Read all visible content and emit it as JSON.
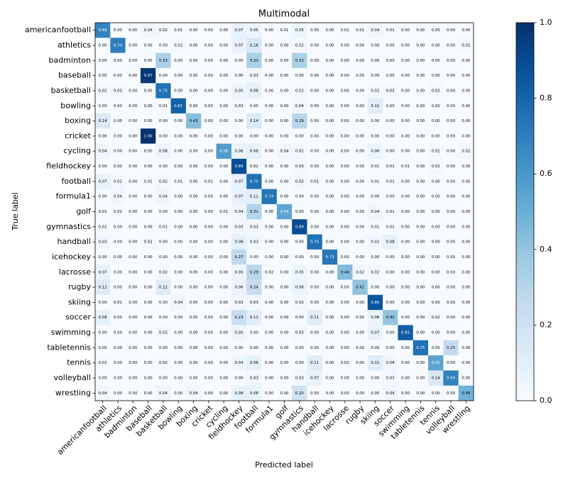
{
  "chart_data": {
    "type": "heatmap",
    "title": "Multimodal",
    "xlabel": "Predicted label",
    "ylabel": "True label",
    "cmap": "Blues",
    "categories": [
      "americanfootball",
      "athletics",
      "badminton",
      "baseball",
      "basketball",
      "bowling",
      "boxing",
      "cricket",
      "cycling",
      "fieldhockey",
      "football",
      "formula1",
      "golf",
      "gymnastics",
      "handball",
      "icehockey",
      "lacrosse",
      "rugby",
      "skiing",
      "soccer",
      "swimming",
      "tabletennis",
      "tennis",
      "volleyball",
      "wrestling"
    ],
    "values": [
      [
        0.68,
        0,
        0,
        0.04,
        0.02,
        0.01,
        0,
        0,
        0,
        0.07,
        0.05,
        0,
        0.01,
        0.05,
        0,
        0,
        0.01,
        0.01,
        0.04,
        0.01,
        0,
        0,
        0,
        0,
        0
      ],
      [
        0,
        0.7,
        0,
        0,
        0,
        0.02,
        0,
        0,
        0,
        0.07,
        0.16,
        0,
        0,
        0.02,
        0,
        0,
        0,
        0,
        0,
        0,
        0,
        0,
        0,
        0,
        0.02
      ],
      [
        0,
        0,
        0,
        0,
        0.33,
        0,
        0,
        0,
        0,
        0,
        0.33,
        0,
        0,
        0.33,
        0,
        0,
        0,
        0,
        0,
        0,
        0,
        0,
        0,
        0,
        0
      ],
      [
        0,
        0,
        0,
        0.97,
        0,
        0,
        0,
        0,
        0,
        0,
        0.03,
        0,
        0,
        0,
        0,
        0,
        0,
        0,
        0,
        0,
        0,
        0,
        0,
        0,
        0
      ],
      [
        0.02,
        0.03,
        0,
        0,
        0.75,
        0,
        0,
        0,
        0,
        0.05,
        0.08,
        0,
        0,
        0.02,
        0,
        0,
        0,
        0,
        0.02,
        0.03,
        0,
        0,
        0.02,
        0,
        0
      ],
      [
        0,
        0,
        0,
        0,
        0.01,
        0.81,
        0,
        0,
        0,
        0.03,
        0,
        0,
        0,
        0.04,
        0,
        0,
        0,
        0,
        0.11,
        0,
        0,
        0,
        0,
        0,
        0
      ],
      [
        0.14,
        0,
        0,
        0,
        0,
        0,
        0.43,
        0,
        0,
        0,
        0.14,
        0,
        0,
        0.29,
        0,
        0,
        0,
        0,
        0,
        0,
        0,
        0,
        0,
        0,
        0
      ],
      [
        0,
        0,
        0,
        1,
        0,
        0,
        0,
        0,
        0,
        0,
        0,
        0,
        0,
        0,
        0,
        0,
        0,
        0,
        0,
        0,
        0,
        0,
        0,
        0,
        0
      ],
      [
        0.04,
        0,
        0,
        0,
        0.06,
        0,
        0,
        0,
        0.58,
        0.06,
        0.08,
        0,
        0.04,
        0.02,
        0,
        0,
        0,
        0,
        0.06,
        0,
        0,
        0,
        0.02,
        0,
        0.02
      ],
      [
        0,
        0,
        0,
        0,
        0,
        0,
        0,
        0,
        0,
        0.89,
        0.02,
        0,
        0,
        0.03,
        0,
        0,
        0,
        0,
        0.01,
        0.01,
        0.01,
        0,
        0.02,
        0,
        0
      ],
      [
        0.07,
        0.02,
        0,
        0.01,
        0.02,
        0.01,
        0,
        0.01,
        0,
        0.07,
        0.75,
        0,
        0,
        0.03,
        0.01,
        0,
        0,
        0,
        0.01,
        0.01,
        0,
        0,
        0,
        0,
        0
      ],
      [
        0,
        0.04,
        0,
        0,
        0.04,
        0,
        0,
        0,
        0,
        0.07,
        0.11,
        0.74,
        0,
        0,
        0,
        0,
        0,
        0,
        0,
        0,
        0,
        0,
        0,
        0,
        0
      ],
      [
        0.01,
        0.01,
        0,
        0,
        0,
        0,
        0,
        0,
        0.01,
        0.04,
        0.31,
        0,
        0.54,
        0,
        0,
        0,
        0,
        0,
        0.04,
        0.01,
        0,
        0,
        0,
        0,
        0
      ],
      [
        0.02,
        0,
        0,
        0,
        0.01,
        0,
        0,
        0,
        0,
        0.03,
        0.03,
        0,
        0,
        0.89,
        0,
        0,
        0,
        0,
        0.01,
        0.01,
        0,
        0,
        0,
        0,
        0
      ],
      [
        0.03,
        0,
        0,
        0.02,
        0,
        0,
        0,
        0,
        0,
        0.08,
        0.03,
        0,
        0,
        0,
        0.75,
        0,
        0,
        0,
        0.02,
        0.08,
        0,
        0,
        0,
        0,
        0
      ],
      [
        0,
        0,
        0,
        0,
        0,
        0,
        0,
        0,
        0,
        0.27,
        0,
        0,
        0,
        0,
        0,
        0.73,
        0,
        0,
        0,
        0,
        0,
        0,
        0,
        0,
        0
      ],
      [
        0.07,
        0,
        0,
        0,
        0.02,
        0,
        0,
        0,
        0,
        0.05,
        0.29,
        0.02,
        0,
        0.05,
        0,
        0,
        0.44,
        0.02,
        0.02,
        0,
        0,
        0,
        0,
        0,
        0
      ],
      [
        0.12,
        0,
        0,
        0,
        0.12,
        0,
        0,
        0,
        0,
        0.06,
        0.24,
        0,
        0,
        0.06,
        0,
        0,
        0,
        0.41,
        0,
        0,
        0,
        0,
        0,
        0,
        0
      ],
      [
        0,
        0.01,
        0,
        0,
        0,
        0.04,
        0,
        0,
        0,
        0.03,
        0.03,
        0,
        0,
        0.02,
        0,
        0,
        0,
        0,
        0.86,
        0,
        0,
        0,
        0,
        0,
        0
      ],
      [
        0.08,
        0,
        0,
        0,
        0,
        0,
        0,
        0,
        0,
        0.23,
        0.11,
        0,
        0,
        0,
        0.11,
        0,
        0,
        0,
        0.06,
        0.4,
        0,
        0,
        0.02,
        0,
        0
      ],
      [
        0,
        0,
        0,
        0,
        0.02,
        0,
        0,
        0,
        0,
        0.05,
        0,
        0,
        0,
        0.03,
        0,
        0,
        0,
        0,
        0.07,
        0,
        0.83,
        0,
        0,
        0,
        0
      ],
      [
        0,
        0,
        0,
        0,
        0,
        0,
        0,
        0,
        0,
        0,
        0,
        0,
        0,
        0,
        0,
        0,
        0,
        0,
        0,
        0,
        0,
        0.75,
        0,
        0.25,
        0
      ],
      [
        0.02,
        0,
        0,
        0,
        0.02,
        0,
        0,
        0,
        0,
        0.04,
        0.08,
        0,
        0,
        0,
        0.11,
        0,
        0.02,
        0,
        0.11,
        0.04,
        0,
        0,
        0.55,
        0,
        0
      ],
      [
        0,
        0,
        0,
        0,
        0,
        0,
        0,
        0,
        0,
        0,
        0.03,
        0,
        0,
        0.03,
        0.07,
        0,
        0,
        0,
        0,
        0.03,
        0,
        0,
        0.14,
        0.69,
        0
      ],
      [
        0.04,
        0,
        0,
        0,
        0.04,
        0,
        0.04,
        0,
        0,
        0.08,
        0.08,
        0,
        0,
        0.2,
        0,
        0,
        0,
        0,
        0,
        0.04,
        0,
        0,
        0,
        0,
        0.48
      ]
    ],
    "value_labels": [
      [
        "0.68",
        "0.00",
        "0.00",
        "0.04",
        "0.02",
        "0.01",
        "0.00",
        "0.00",
        "0.00",
        "0.07",
        "0.05",
        "0.00",
        "0.01",
        "0.05",
        "0.00",
        "0.00",
        "0.01",
        "0.01",
        "0.04",
        "0.01",
        "0.00",
        "0.00",
        "0.00",
        "0.00",
        "0.00"
      ],
      [
        "0.00",
        "0.70",
        "0.00",
        "0.00",
        "0.00",
        "0.02",
        "0.00",
        "0.00",
        "0.00",
        "0.07",
        "0.16",
        "0.00",
        "0.00",
        "0.02",
        "0.00",
        "0.00",
        "0.00",
        "0.00",
        "0.00",
        "0.00",
        "0.00",
        "0.00",
        "0.00",
        "0.00",
        "0.02"
      ],
      [
        "0.00",
        "0.00",
        "0.00",
        "0.00",
        "0.33",
        "0.00",
        "0.00",
        "0.00",
        "0.00",
        "0.00",
        "0.33",
        "0.00",
        "0.00",
        "0.33",
        "0.00",
        "0.00",
        "0.00",
        "0.00",
        "0.00",
        "0.00",
        "0.00",
        "0.00",
        "0.00",
        "0.00",
        "0.00"
      ],
      [
        "0.00",
        "0.00",
        "0.00",
        "0.97",
        "0.00",
        "0.00",
        "0.00",
        "0.00",
        "0.00",
        "0.00",
        "0.03",
        "0.00",
        "0.00",
        "0.00",
        "0.00",
        "0.00",
        "0.00",
        "0.00",
        "0.00",
        "0.00",
        "0.00",
        "0.00",
        "0.00",
        "0.00",
        "0.00"
      ],
      [
        "0.02",
        "0.03",
        "0.00",
        "0.00",
        "0.75",
        "0.00",
        "0.00",
        "0.00",
        "0.00",
        "0.05",
        "0.08",
        "0.00",
        "0.00",
        "0.02",
        "0.00",
        "0.00",
        "0.00",
        "0.00",
        "0.02",
        "0.03",
        "0.00",
        "0.00",
        "0.02",
        "0.00",
        "0.00"
      ],
      [
        "0.00",
        "0.00",
        "0.00",
        "0.00",
        "0.01",
        "0.81",
        "0.00",
        "0.00",
        "0.00",
        "0.03",
        "0.00",
        "0.00",
        "0.00",
        "0.04",
        "0.00",
        "0.00",
        "0.00",
        "0.00",
        "0.11",
        "0.00",
        "0.00",
        "0.00",
        "0.00",
        "0.00",
        "0.00"
      ],
      [
        "0.14",
        "0.00",
        "0.00",
        "0.00",
        "0.00",
        "0.00",
        "0.43",
        "0.00",
        "0.00",
        "0.00",
        "0.14",
        "0.00",
        "0.00",
        "0.29",
        "0.00",
        "0.00",
        "0.00",
        "0.00",
        "0.00",
        "0.00",
        "0.00",
        "0.00",
        "0.00",
        "0.00",
        "0.00"
      ],
      [
        "0.00",
        "0.00",
        "0.00",
        "1.00",
        "0.00",
        "0.00",
        "0.00",
        "0.00",
        "0.00",
        "0.00",
        "0.00",
        "0.00",
        "0.00",
        "0.00",
        "0.00",
        "0.00",
        "0.00",
        "0.00",
        "0.00",
        "0.00",
        "0.00",
        "0.00",
        "0.00",
        "0.00",
        "0.00"
      ],
      [
        "0.04",
        "0.00",
        "0.00",
        "0.00",
        "0.06",
        "0.00",
        "0.00",
        "0.00",
        "0.58",
        "0.06",
        "0.08",
        "0.00",
        "0.04",
        "0.02",
        "0.00",
        "0.00",
        "0.00",
        "0.00",
        "0.06",
        "0.00",
        "0.00",
        "0.00",
        "0.02",
        "0.00",
        "0.02"
      ],
      [
        "0.00",
        "0.00",
        "0.00",
        "0.00",
        "0.00",
        "0.00",
        "0.00",
        "0.00",
        "0.00",
        "0.89",
        "0.02",
        "0.00",
        "0.00",
        "0.03",
        "0.00",
        "0.00",
        "0.00",
        "0.00",
        "0.01",
        "0.01",
        "0.01",
        "0.00",
        "0.02",
        "0.00",
        "0.00"
      ],
      [
        "0.07",
        "0.02",
        "0.00",
        "0.01",
        "0.02",
        "0.01",
        "0.00",
        "0.01",
        "0.00",
        "0.07",
        "0.75",
        "0.00",
        "0.00",
        "0.03",
        "0.01",
        "0.00",
        "0.00",
        "0.00",
        "0.01",
        "0.01",
        "0.00",
        "0.00",
        "0.00",
        "0.00",
        "0.00"
      ],
      [
        "0.00",
        "0.04",
        "0.00",
        "0.00",
        "0.04",
        "0.00",
        "0.00",
        "0.00",
        "0.00",
        "0.07",
        "0.11",
        "0.74",
        "0.00",
        "0.00",
        "0.00",
        "0.00",
        "0.00",
        "0.00",
        "0.00",
        "0.00",
        "0.00",
        "0.00",
        "0.00",
        "0.00",
        "0.00"
      ],
      [
        "0.01",
        "0.01",
        "0.00",
        "0.00",
        "0.00",
        "0.00",
        "0.00",
        "0.00",
        "0.01",
        "0.04",
        "0.31",
        "0.00",
        "0.54",
        "0.00",
        "0.00",
        "0.00",
        "0.00",
        "0.00",
        "0.04",
        "0.01",
        "0.00",
        "0.00",
        "0.00",
        "0.00",
        "0.00"
      ],
      [
        "0.02",
        "0.00",
        "0.00",
        "0.00",
        "0.01",
        "0.00",
        "0.00",
        "0.00",
        "0.00",
        "0.03",
        "0.03",
        "0.00",
        "0.00",
        "0.89",
        "0.00",
        "0.00",
        "0.00",
        "0.00",
        "0.01",
        "0.01",
        "0.00",
        "0.00",
        "0.00",
        "0.00",
        "0.00"
      ],
      [
        "0.03",
        "0.00",
        "0.00",
        "0.02",
        "0.00",
        "0.00",
        "0.00",
        "0.00",
        "0.00",
        "0.08",
        "0.03",
        "0.00",
        "0.00",
        "0.00",
        "0.75",
        "0.00",
        "0.00",
        "0.00",
        "0.02",
        "0.08",
        "0.00",
        "0.00",
        "0.00",
        "0.00",
        "0.00"
      ],
      [
        "0.00",
        "0.00",
        "0.00",
        "0.00",
        "0.00",
        "0.00",
        "0.00",
        "0.00",
        "0.00",
        "0.27",
        "0.00",
        "0.00",
        "0.00",
        "0.00",
        "0.00",
        "0.73",
        "0.00",
        "0.00",
        "0.00",
        "0.00",
        "0.00",
        "0.00",
        "0.00",
        "0.00",
        "0.00"
      ],
      [
        "0.07",
        "0.00",
        "0.00",
        "0.00",
        "0.02",
        "0.00",
        "0.00",
        "0.00",
        "0.00",
        "0.05",
        "0.29",
        "0.02",
        "0.00",
        "0.05",
        "0.00",
        "0.00",
        "0.44",
        "0.02",
        "0.02",
        "0.00",
        "0.00",
        "0.00",
        "0.00",
        "0.00",
        "0.00"
      ],
      [
        "0.12",
        "0.00",
        "0.00",
        "0.00",
        "0.12",
        "0.00",
        "0.00",
        "0.00",
        "0.00",
        "0.06",
        "0.24",
        "0.00",
        "0.00",
        "0.06",
        "0.00",
        "0.00",
        "0.00",
        "0.41",
        "0.00",
        "0.00",
        "0.00",
        "0.00",
        "0.00",
        "0.00",
        "0.00"
      ],
      [
        "0.00",
        "0.01",
        "0.00",
        "0.00",
        "0.00",
        "0.04",
        "0.00",
        "0.00",
        "0.00",
        "0.03",
        "0.03",
        "0.00",
        "0.00",
        "0.02",
        "0.00",
        "0.00",
        "0.00",
        "0.00",
        "0.86",
        "0.00",
        "0.00",
        "0.00",
        "0.00",
        "0.00",
        "0.00"
      ],
      [
        "0.08",
        "0.00",
        "0.00",
        "0.00",
        "0.00",
        "0.00",
        "0.00",
        "0.00",
        "0.00",
        "0.23",
        "0.11",
        "0.00",
        "0.00",
        "0.00",
        "0.11",
        "0.00",
        "0.00",
        "0.00",
        "0.06",
        "0.40",
        "0.00",
        "0.00",
        "0.02",
        "0.00",
        "0.00"
      ],
      [
        "0.00",
        "0.00",
        "0.00",
        "0.00",
        "0.02",
        "0.00",
        "0.00",
        "0.00",
        "0.00",
        "0.05",
        "0.00",
        "0.00",
        "0.00",
        "0.03",
        "0.00",
        "0.00",
        "0.00",
        "0.00",
        "0.07",
        "0.00",
        "0.83",
        "0.00",
        "0.00",
        "0.00",
        "0.00"
      ],
      [
        "0.00",
        "0.00",
        "0.00",
        "0.00",
        "0.00",
        "0.00",
        "0.00",
        "0.00",
        "0.00",
        "0.00",
        "0.00",
        "0.00",
        "0.00",
        "0.00",
        "0.00",
        "0.00",
        "0.00",
        "0.00",
        "0.00",
        "0.00",
        "0.00",
        "0.75",
        "0.00",
        "0.25",
        "0.00"
      ],
      [
        "0.02",
        "0.00",
        "0.00",
        "0.00",
        "0.02",
        "0.00",
        "0.00",
        "0.00",
        "0.00",
        "0.04",
        "0.08",
        "0.00",
        "0.00",
        "0.00",
        "0.11",
        "0.00",
        "0.02",
        "0.00",
        "0.11",
        "0.04",
        "0.00",
        "0.00",
        "0.55",
        "0.00",
        "0.00"
      ],
      [
        "0.00",
        "0.00",
        "0.00",
        "0.00",
        "0.00",
        "0.00",
        "0.00",
        "0.00",
        "0.00",
        "0.00",
        "0.03",
        "0.00",
        "0.00",
        "0.03",
        "0.07",
        "0.00",
        "0.00",
        "0.00",
        "0.00",
        "0.03",
        "0.00",
        "0.00",
        "0.14",
        "0.69",
        "0.00"
      ],
      [
        "0.04",
        "0.00",
        "0.00",
        "0.00",
        "0.04",
        "0.00",
        "0.04",
        "0.00",
        "0.00",
        "0.08",
        "0.08",
        "0.00",
        "0.00",
        "0.20",
        "0.00",
        "0.00",
        "0.00",
        "0.00",
        "0.00",
        "0.04",
        "0.00",
        "0.00",
        "0.00",
        "0.00",
        "0.48"
      ]
    ],
    "clim": [
      0,
      1
    ],
    "colorbar_ticks": [
      {
        "value": 0,
        "label": "0.0"
      },
      {
        "value": 0.2,
        "label": "0.2"
      },
      {
        "value": 0.4,
        "label": "0.4"
      },
      {
        "value": 0.6,
        "label": "0.6"
      },
      {
        "value": 0.8,
        "label": "0.8"
      },
      {
        "value": 1,
        "label": "1.0"
      }
    ]
  }
}
